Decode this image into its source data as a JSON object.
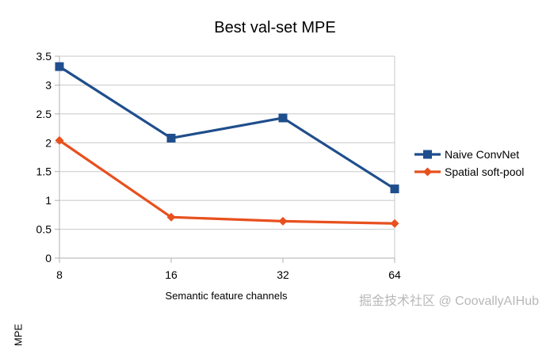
{
  "chart_data": {
    "type": "line",
    "title": "Best val-set MPE",
    "xlabel": "Semantic feature channels",
    "ylabel": "MPE",
    "categories": [
      "8",
      "16",
      "32",
      "64"
    ],
    "ylim": [
      0,
      3.5
    ],
    "yticks": [
      "0",
      "0.5",
      "1",
      "1.5",
      "2",
      "2.5",
      "3",
      "3.5"
    ],
    "grid": true,
    "legend_position": "right",
    "series": [
      {
        "name": "Naive ConvNet",
        "values": [
          3.32,
          2.08,
          2.43,
          1.2
        ],
        "color": "#1f4e8c",
        "marker": "square"
      },
      {
        "name": "Spatial soft-pool",
        "values": [
          2.04,
          0.71,
          0.64,
          0.6
        ],
        "color": "#e8501e",
        "marker": "diamond"
      }
    ]
  },
  "watermark": "掘金技术社区 @ CoovallyAIHub"
}
